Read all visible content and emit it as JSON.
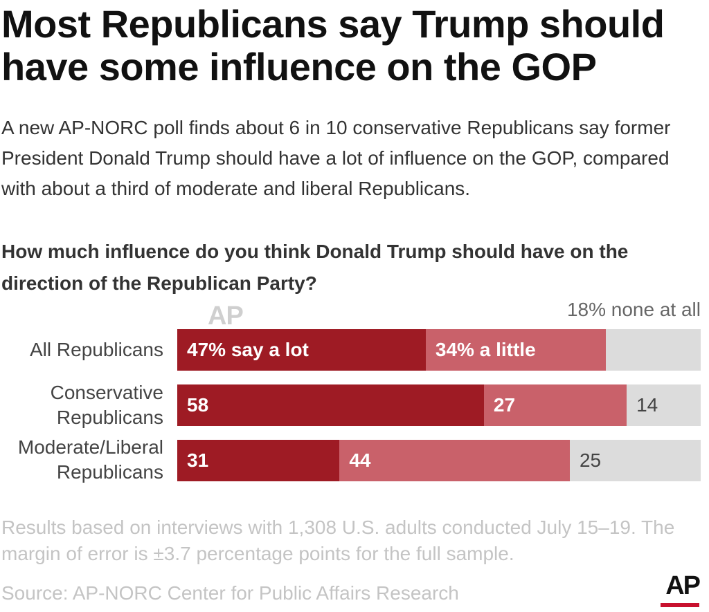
{
  "title": "Most Republicans say Trump should have some influence on the GOP",
  "subtitle": "A new AP-NORC poll finds about 6 in 10 conservative Republicans say former President Donald Trump should have a lot of influence on the GOP, compared with about a third of moderate and liberal Republicans.",
  "question": "How much influence do you think Donald Trump should have on the direction of the Republican Party?",
  "watermark": "AP",
  "none_label": "18% none at all",
  "colors": {
    "a_lot": "#9e1b24",
    "a_little": "#c9616a",
    "none": "#dcdcdc"
  },
  "chart_data": {
    "type": "bar",
    "orientation": "horizontal",
    "stacked": true,
    "categories": [
      "All Republicans",
      "Conservative Republicans",
      "Moderate/Liberal Republicans"
    ],
    "category_lines": [
      [
        "All Republicans"
      ],
      [
        "Conservative",
        "Republicans"
      ],
      [
        "Moderate/Liberal",
        "Republicans"
      ]
    ],
    "series": [
      {
        "name": "a lot",
        "values": [
          47,
          58,
          31
        ],
        "labels": [
          "47% say a lot",
          "58",
          "31"
        ]
      },
      {
        "name": "a little",
        "values": [
          34,
          27,
          44
        ],
        "labels": [
          "34% a little",
          "27",
          "44"
        ]
      },
      {
        "name": "none at all",
        "values": [
          18,
          14,
          25
        ],
        "labels": [
          "",
          "14",
          "25"
        ]
      }
    ],
    "xlim": [
      0,
      100
    ],
    "grid": false
  },
  "note": "Results based on interviews with 1,308 U.S. adults conducted July 15–19. The margin of error is ±3.7 percentage points for the full sample.",
  "source": "Source: AP-NORC Center for Public Affairs Research",
  "logo": "AP"
}
